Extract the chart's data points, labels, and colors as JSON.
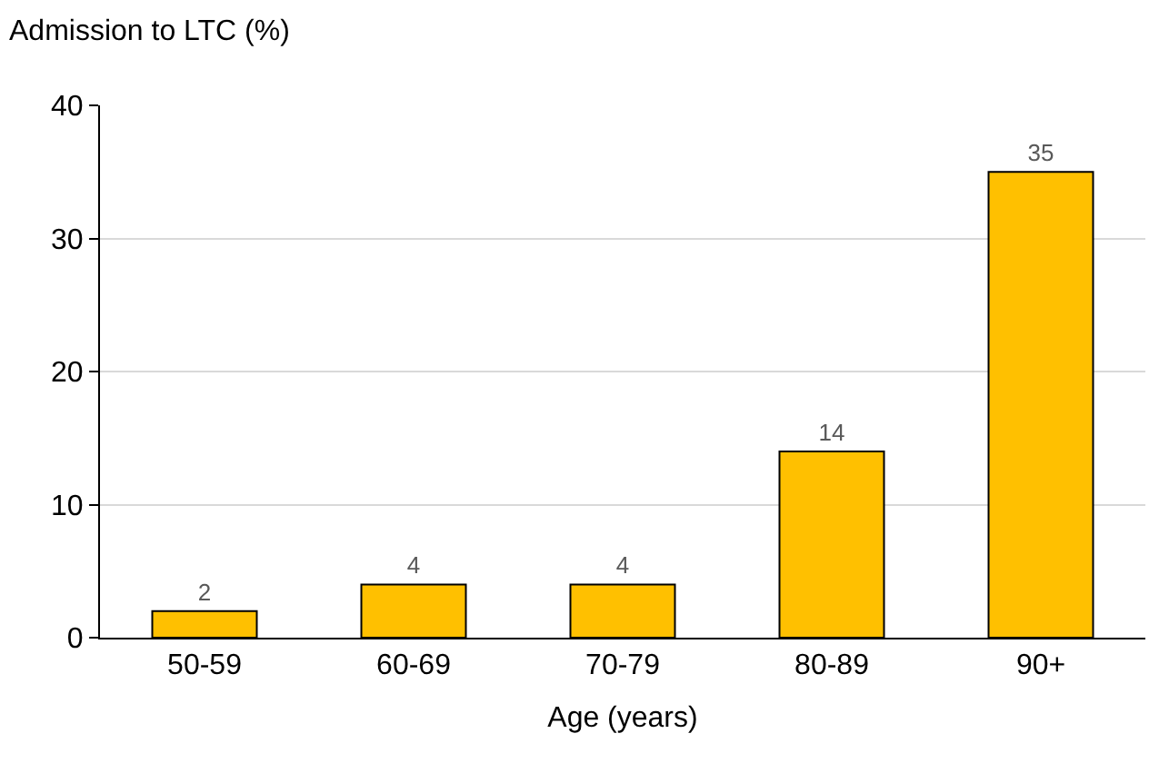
{
  "chart_data": {
    "type": "bar",
    "xlabel": "Age (years)",
    "ylabel": "Admission to LTC (%)",
    "categories": [
      "50-59",
      "60-69",
      "70-79",
      "80-89",
      "90+"
    ],
    "values": [
      2,
      4,
      4,
      14,
      35
    ],
    "color": "#ffc000",
    "data_labels": true,
    "ylim": [
      0,
      40
    ],
    "yticks": [
      0,
      10,
      20,
      30,
      40
    ],
    "grid": "y"
  }
}
